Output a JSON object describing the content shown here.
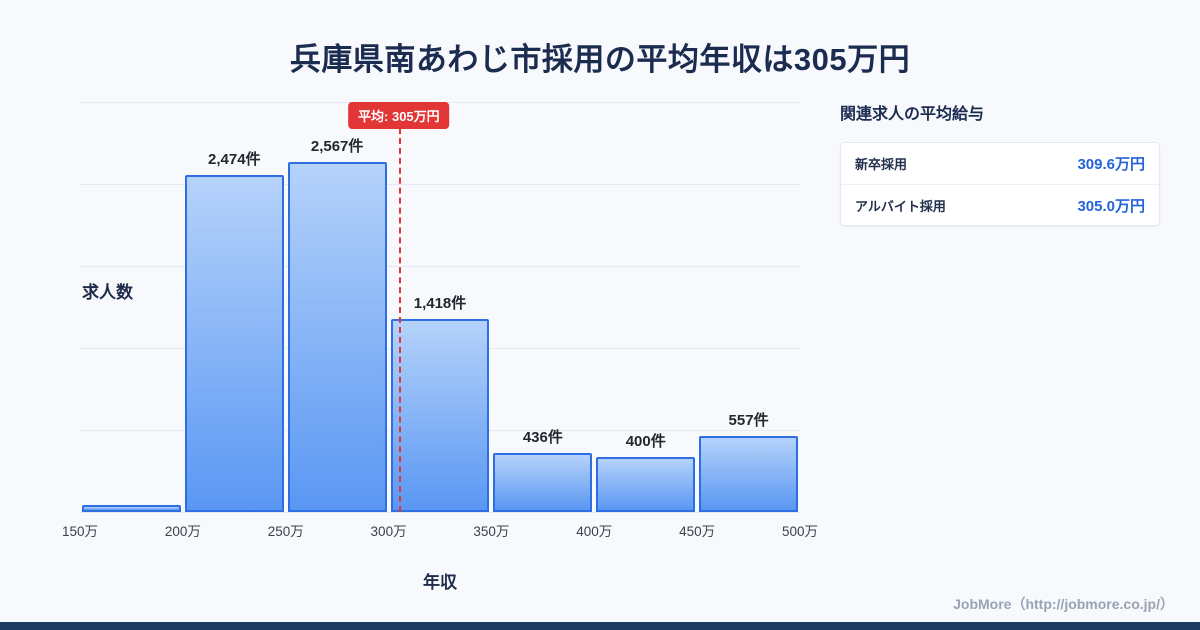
{
  "page": {
    "title": "兵庫県南あわじ市採用の平均年収は305万円",
    "footer_credit": "JobMore（http://jobmore.co.jp/）"
  },
  "chart_data": {
    "type": "bar",
    "title": "兵庫県南あわじ市採用の平均年収は305万円",
    "xlabel": "年収",
    "ylabel": "求人数",
    "categories": [
      "150万",
      "200万",
      "250万",
      "300万",
      "350万",
      "400万",
      "450万",
      "500万"
    ],
    "x_range": [
      150,
      500
    ],
    "values": [
      51,
      2474,
      2567,
      1418,
      436,
      400,
      557
    ],
    "bar_labels": [
      "",
      "2,474件",
      "2,567件",
      "1,418件",
      "436件",
      "400件",
      "557件"
    ],
    "ylim": [
      0,
      2700
    ],
    "grid": true,
    "average_line": {
      "value": 305,
      "label": "平均: 305万円",
      "color": "#e23636"
    },
    "colors": {
      "bar_fill_top": "#b5d2fa",
      "bar_fill_bottom": "#5a97f3",
      "bar_border": "#2d6fe2"
    }
  },
  "side_panel": {
    "title": "関連求人の平均給与",
    "rows": [
      {
        "label": "新卒採用",
        "value": "309.6万円"
      },
      {
        "label": "アルバイト採用",
        "value": "305.0万円"
      }
    ]
  }
}
